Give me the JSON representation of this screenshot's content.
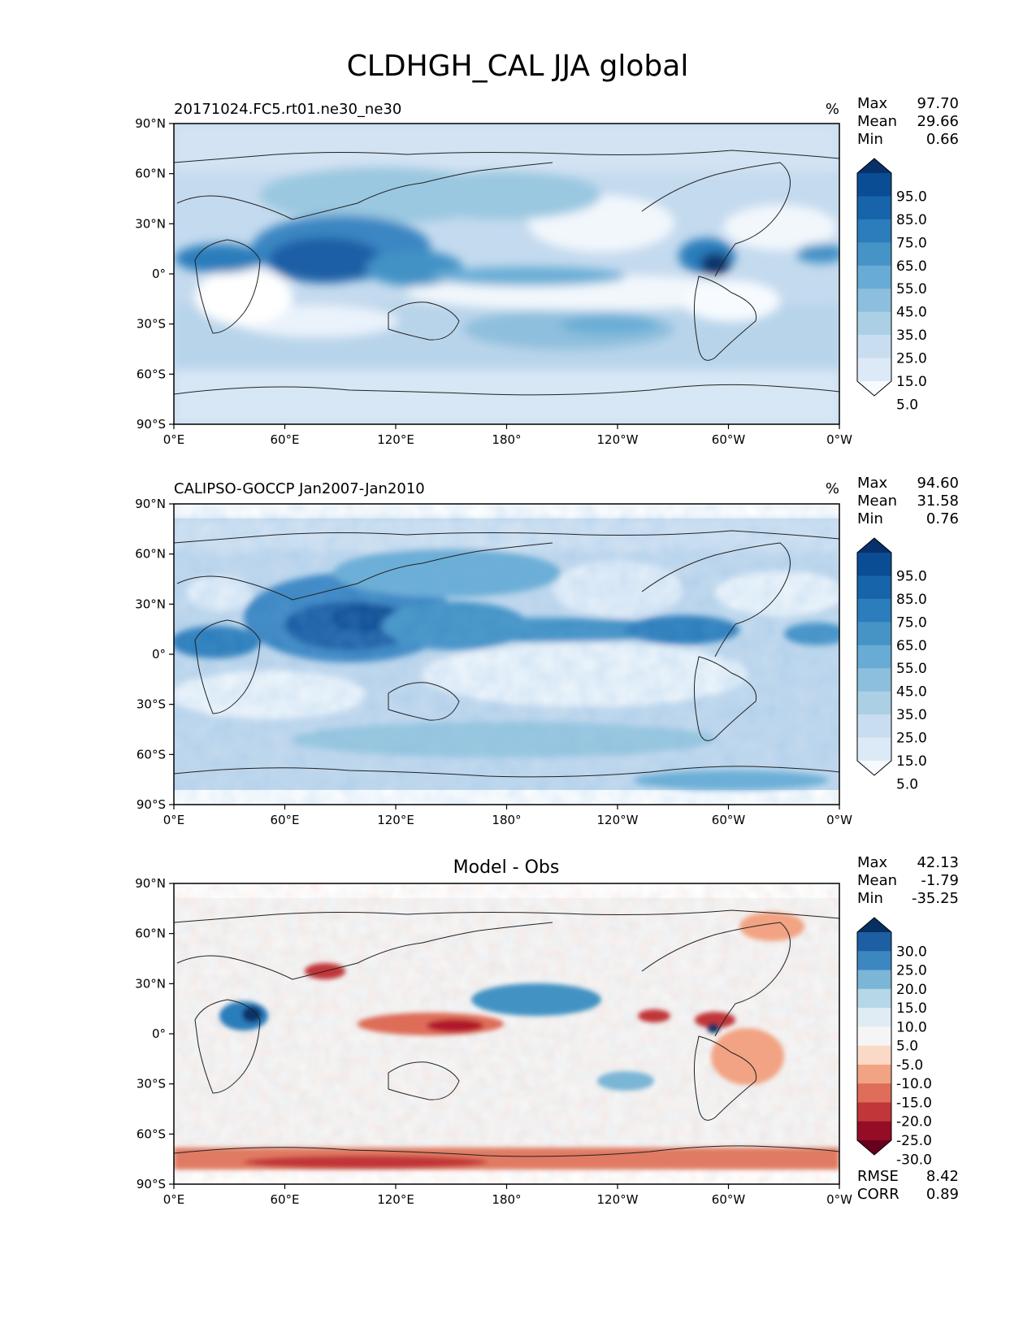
{
  "figure": {
    "title": "CLDHGH_CAL JJA global"
  },
  "axes": {
    "lat_ticks": [
      "90°N",
      "60°N",
      "30°N",
      "0°",
      "30°S",
      "60°S",
      "90°S"
    ],
    "lon_ticks": [
      "0°E",
      "60°E",
      "120°E",
      "180°",
      "120°W",
      "60°W",
      "0°W"
    ]
  },
  "panels": [
    {
      "id": "model",
      "left_title": "20171024.FC5.rt01.ne30_ne30",
      "center_title": "",
      "units": "%",
      "stats": [
        {
          "label": "Max",
          "value": "97.70"
        },
        {
          "label": "Mean",
          "value": "29.66"
        },
        {
          "label": "Min",
          "value": "0.66"
        }
      ],
      "colorbar": {
        "colormap": "Blues",
        "labels": [
          "95.0",
          "85.0",
          "75.0",
          "65.0",
          "55.0",
          "45.0",
          "35.0",
          "25.0",
          "15.0",
          "5.0"
        ],
        "colors": [
          "#08306b",
          "#0b4d94",
          "#1764ab",
          "#2c7dbb",
          "#4693c6",
          "#68abd5",
          "#8bbfdd",
          "#abd0e6",
          "#c9ddf0",
          "#dce9f6",
          "#f7fbff"
        ]
      },
      "footer_stats": []
    },
    {
      "id": "obs",
      "left_title": "CALIPSO-GOCCP Jan2007-Jan2010",
      "center_title": "",
      "units": "%",
      "stats": [
        {
          "label": "Max",
          "value": "94.60"
        },
        {
          "label": "Mean",
          "value": "31.58"
        },
        {
          "label": "Min",
          "value": "0.76"
        }
      ],
      "colorbar": {
        "colormap": "Blues",
        "labels": [
          "95.0",
          "85.0",
          "75.0",
          "65.0",
          "55.0",
          "45.0",
          "35.0",
          "25.0",
          "15.0",
          "5.0"
        ],
        "colors": [
          "#08306b",
          "#0b4d94",
          "#1764ab",
          "#2c7dbb",
          "#4693c6",
          "#68abd5",
          "#8bbfdd",
          "#abd0e6",
          "#c9ddf0",
          "#dce9f6",
          "#f7fbff"
        ]
      },
      "footer_stats": []
    },
    {
      "id": "diff",
      "left_title": "",
      "center_title": "Model - Obs",
      "units": "",
      "stats": [
        {
          "label": "Max",
          "value": "42.13"
        },
        {
          "label": "Mean",
          "value": "-1.79"
        },
        {
          "label": "Min",
          "value": "-35.25"
        }
      ],
      "colorbar": {
        "colormap": "RdBu",
        "labels": [
          "30.0",
          "25.0",
          "20.0",
          "15.0",
          "10.0",
          "5.0",
          "-5.0",
          "-10.0",
          "-15.0",
          "-20.0",
          "-25.0",
          "-30.0"
        ],
        "colors": [
          "#053061",
          "#1d5fa2",
          "#3d87c0",
          "#7bb6d6",
          "#b5d7e8",
          "#e0ecf3",
          "#f5f5f5",
          "#fbd9c7",
          "#f2a383",
          "#de6d59",
          "#c13639",
          "#940c25",
          "#67001f"
        ]
      },
      "footer_stats": [
        {
          "label": "RMSE",
          "value": "8.42"
        },
        {
          "label": "CORR",
          "value": "0.89"
        }
      ]
    }
  ]
}
